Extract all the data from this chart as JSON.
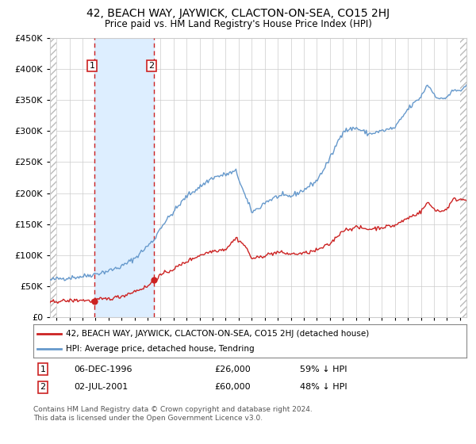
{
  "title": "42, BEACH WAY, JAYWICK, CLACTON-ON-SEA, CO15 2HJ",
  "subtitle": "Price paid vs. HM Land Registry's House Price Index (HPI)",
  "legend_line1": "42, BEACH WAY, JAYWICK, CLACTON-ON-SEA, CO15 2HJ (detached house)",
  "legend_line2": "HPI: Average price, detached house, Tendring",
  "annotation1_label": "1",
  "annotation1_date": "06-DEC-1996",
  "annotation1_price": "£26,000",
  "annotation1_hpi": "59% ↓ HPI",
  "annotation2_label": "2",
  "annotation2_date": "02-JUL-2001",
  "annotation2_price": "£60,000",
  "annotation2_hpi": "48% ↓ HPI",
  "footnote": "Contains HM Land Registry data © Crown copyright and database right 2024.\nThis data is licensed under the Open Government Licence v3.0.",
  "hpi_color": "#6699cc",
  "price_color": "#cc2222",
  "dot_color": "#cc2222",
  "background_color": "#ffffff",
  "shade_color": "#ddeeff",
  "ylim": [
    0,
    450000
  ],
  "yticks": [
    0,
    50000,
    100000,
    150000,
    200000,
    250000,
    300000,
    350000,
    400000,
    450000
  ],
  "sale1_x": 1996.92,
  "sale1_y": 26000,
  "sale2_x": 2001.5,
  "sale2_y": 60000,
  "shade_x1": 1996.92,
  "shade_x2": 2001.5,
  "vline1_x": 1996.92,
  "vline2_x": 2001.5,
  "xmin": 1993.5,
  "xmax": 2025.5,
  "hatch_end": 1994.0,
  "hatch_start": 2025.0
}
